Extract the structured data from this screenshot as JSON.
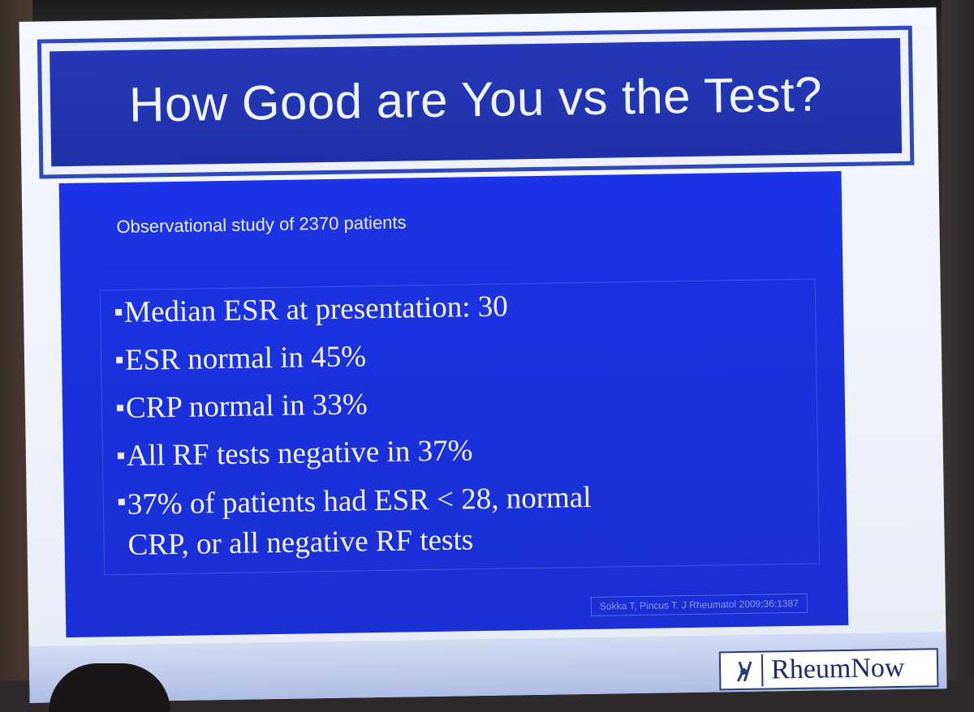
{
  "slide": {
    "title": "How Good are You vs the Test?",
    "subtitle": "Observational study of 2370 patients",
    "bullets": [
      {
        "lines": [
          "Median ESR at presentation: 30"
        ]
      },
      {
        "lines": [
          "ESR normal in 45%"
        ]
      },
      {
        "lines": [
          "CRP normal in 33%"
        ]
      },
      {
        "lines": [
          "All RF tests negative in 37%"
        ]
      },
      {
        "lines": [
          "37% of patients had ESR < 28, normal",
          "CRP, or all negative RF tests"
        ]
      }
    ],
    "citation": "Sokka T, Pincus T. J Rheumatol 2009;36:1387",
    "logo_text": "RheumNow",
    "logo_icon": "joint-icon"
  },
  "colors": {
    "title_bg": "#2438b8",
    "content_bg": "#1c34e6",
    "slide_bg": "#f4f7ff",
    "text": "#f2f4ff",
    "citation": "#8f9ae6"
  }
}
